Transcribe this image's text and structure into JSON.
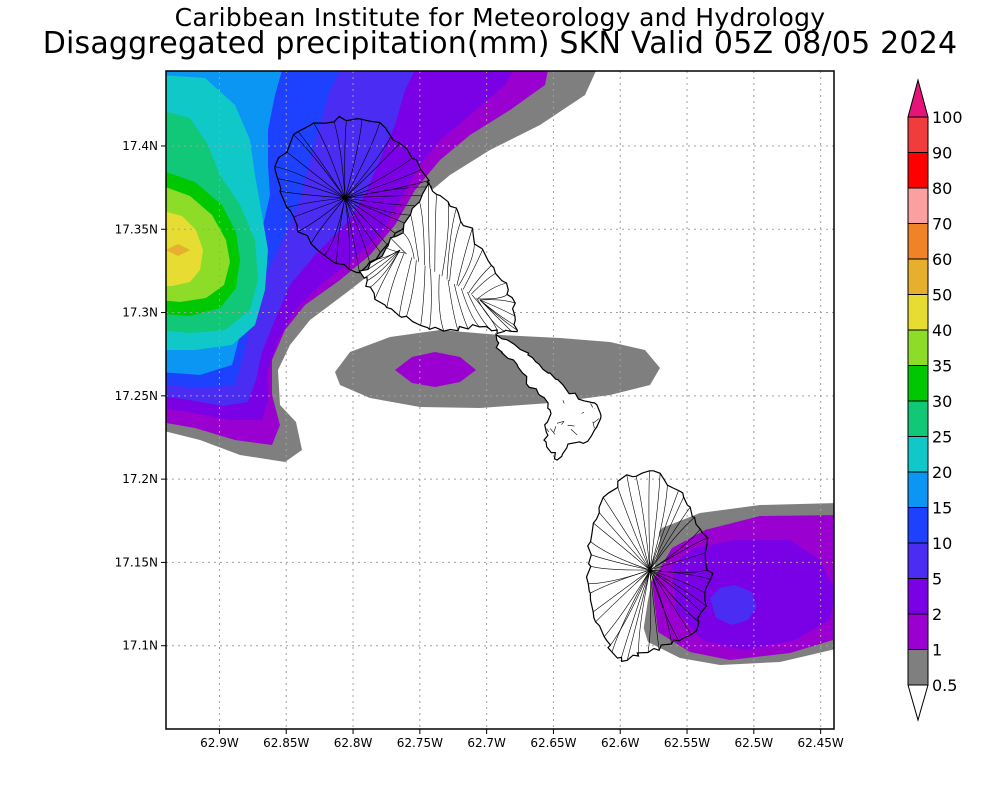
{
  "titles": {
    "line1": "Caribbean Institute for Meteorology and Hydrology",
    "line2": "Disaggregated precipitation(mm) SKN Valid 05Z 08/05 2024"
  },
  "map": {
    "lon_range": [
      -62.94,
      -62.44
    ],
    "lat_range": [
      17.05,
      17.445
    ],
    "lon_ticks": [
      {
        "value": -62.9,
        "label": "62.9W"
      },
      {
        "value": -62.85,
        "label": "62.85W"
      },
      {
        "value": -62.8,
        "label": "62.8W"
      },
      {
        "value": -62.75,
        "label": "62.75W"
      },
      {
        "value": -62.7,
        "label": "62.7W"
      },
      {
        "value": -62.65,
        "label": "62.65W"
      },
      {
        "value": -62.6,
        "label": "62.6W"
      },
      {
        "value": -62.55,
        "label": "62.55W"
      },
      {
        "value": -62.5,
        "label": "62.5W"
      },
      {
        "value": -62.45,
        "label": "62.45W"
      }
    ],
    "lat_ticks": [
      {
        "value": 17.1,
        "label": "17.1N"
      },
      {
        "value": 17.15,
        "label": "17.15N"
      },
      {
        "value": 17.2,
        "label": "17.2N"
      },
      {
        "value": 17.25,
        "label": "17.25N"
      },
      {
        "value": 17.3,
        "label": "17.3N"
      },
      {
        "value": 17.35,
        "label": "17.35N"
      },
      {
        "value": 17.4,
        "label": "17.4N"
      }
    ],
    "grid": true
  },
  "colorbar": {
    "levels": [
      {
        "label": "0.5",
        "color": "#7f7f7f"
      },
      {
        "label": "1",
        "color": "#9a00d0"
      },
      {
        "label": "2",
        "color": "#7a00e6"
      },
      {
        "label": "5",
        "color": "#4a2cf2"
      },
      {
        "label": "10",
        "color": "#1e40ff"
      },
      {
        "label": "15",
        "color": "#0a96f2"
      },
      {
        "label": "20",
        "color": "#10c8c8"
      },
      {
        "label": "25",
        "color": "#10c878"
      },
      {
        "label": "30",
        "color": "#00c800"
      },
      {
        "label": "35",
        "color": "#8cdc28"
      },
      {
        "label": "40",
        "color": "#e6dc32"
      },
      {
        "label": "50",
        "color": "#e6af2d"
      },
      {
        "label": "60",
        "color": "#f08228"
      },
      {
        "label": "70",
        "color": "#faa0a0"
      },
      {
        "label": "80",
        "color": "#ff0000"
      },
      {
        "label": "90",
        "color": "#f03c3c"
      },
      {
        "label": "100",
        "color": "#e6147a"
      }
    ],
    "under_color": "#ffffff",
    "over_color": "#e6147a"
  }
}
